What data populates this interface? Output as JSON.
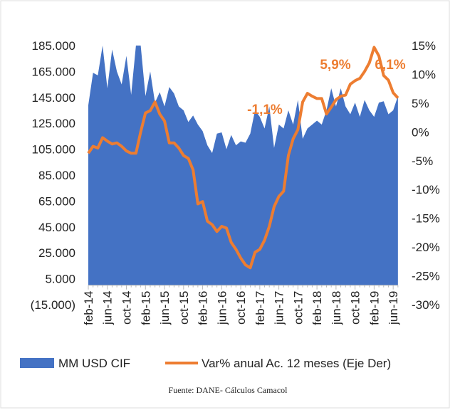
{
  "chart_data": {
    "type": "area-line",
    "categories": [
      "feb-14",
      null,
      null,
      null,
      "jun-14",
      null,
      null,
      null,
      "oct-14",
      null,
      null,
      null,
      "feb-15",
      null,
      null,
      null,
      "jun-15",
      null,
      null,
      null,
      "oct-15",
      null,
      null,
      null,
      "feb-16",
      null,
      null,
      null,
      "jun-16",
      null,
      null,
      null,
      "oct-16",
      null,
      null,
      null,
      "feb-17",
      null,
      null,
      null,
      "jun-17",
      null,
      null,
      null,
      "oct-17",
      null,
      null,
      null,
      "feb-18",
      null,
      null,
      null,
      "jun-18",
      null,
      null,
      null,
      "oct-18",
      null,
      null,
      null,
      "feb-19",
      null,
      null,
      null,
      "jun-19",
      null
    ],
    "series": [
      {
        "name": "MM USD CIF",
        "color": "#4472c4",
        "type": "area",
        "values": [
          139000,
          164000,
          162000,
          185000,
          152000,
          182000,
          165000,
          155000,
          177000,
          147000,
          185000,
          185000,
          146000,
          165000,
          141000,
          149000,
          138000,
          153000,
          148000,
          138000,
          135000,
          126000,
          131000,
          124000,
          119000,
          108000,
          102000,
          117000,
          118000,
          105000,
          116000,
          108000,
          111000,
          110000,
          117000,
          135000,
          130000,
          121000,
          138000,
          106000,
          124000,
          121000,
          135000,
          124000,
          143000,
          113000,
          121000,
          124000,
          127000,
          124000,
          135000,
          152000,
          138000,
          152000,
          138000,
          132000,
          141000,
          130000,
          143000,
          135000,
          130000,
          141000,
          142000,
          132000,
          135000,
          146000
        ]
      },
      {
        "name": "Var% anual Ac. 12 meses (Eje Der)",
        "color": "#ed7d31",
        "type": "line",
        "axis": "y2",
        "values": [
          -3.7,
          -2.5,
          -2.8,
          -1,
          -1.6,
          -2.1,
          -1.9,
          -2.5,
          -3.3,
          -3.7,
          -3.7,
          0,
          3.3,
          3.7,
          5.2,
          3.1,
          1.9,
          -1.9,
          -1.9,
          -2.8,
          -4.1,
          -4.6,
          -6.6,
          -12.5,
          -12.1,
          -15.5,
          -16.1,
          -17.3,
          -16.4,
          -16.7,
          -19.2,
          -20.4,
          -21.9,
          -23.1,
          -23.6,
          -20.9,
          -20.4,
          -18.8,
          -16.4,
          -13,
          -11.2,
          -10.3,
          -4.1,
          -1.2,
          0.4,
          5.2,
          6.7,
          6.2,
          5.8,
          5.8,
          3.1,
          4.3,
          5.6,
          6.2,
          6.4,
          8.3,
          8.9,
          9.3,
          10.5,
          12,
          14.7,
          13.2,
          9.8,
          9,
          6.8,
          5.9
        ]
      }
    ],
    "annotations": [
      "-1,1%",
      "5,9%",
      "6,1%"
    ],
    "ylim": [
      -15000,
      185000
    ],
    "yticks": [
      {
        "value": -15000,
        "label": "(15.000)"
      },
      {
        "value": 5000,
        "label": "5.000"
      },
      {
        "value": 25000,
        "label": "25.000"
      },
      {
        "value": 45000,
        "label": "45.000"
      },
      {
        "value": 65000,
        "label": "65.000"
      },
      {
        "value": 85000,
        "label": "85.000"
      },
      {
        "value": 105000,
        "label": "105.000"
      },
      {
        "value": 125000,
        "label": "125.000"
      },
      {
        "value": 145000,
        "label": "145.000"
      },
      {
        "value": 165000,
        "label": "165.000"
      },
      {
        "value": 185000,
        "label": "185.000"
      }
    ],
    "y2lim": [
      -30,
      15
    ],
    "y2ticks": [
      {
        "value": -30,
        "label": "-30%"
      },
      {
        "value": -25,
        "label": "-25%"
      },
      {
        "value": -20,
        "label": "-20%"
      },
      {
        "value": -15,
        "label": "-15%"
      },
      {
        "value": -10,
        "label": "-10%"
      },
      {
        "value": -5,
        "label": "-5%"
      },
      {
        "value": 0,
        "label": "0%"
      },
      {
        "value": 5,
        "label": "5%"
      },
      {
        "value": 10,
        "label": "10%"
      },
      {
        "value": 15,
        "label": "15%"
      }
    ],
    "source": "Fuente: DANE- Cálculos Camacol"
  }
}
